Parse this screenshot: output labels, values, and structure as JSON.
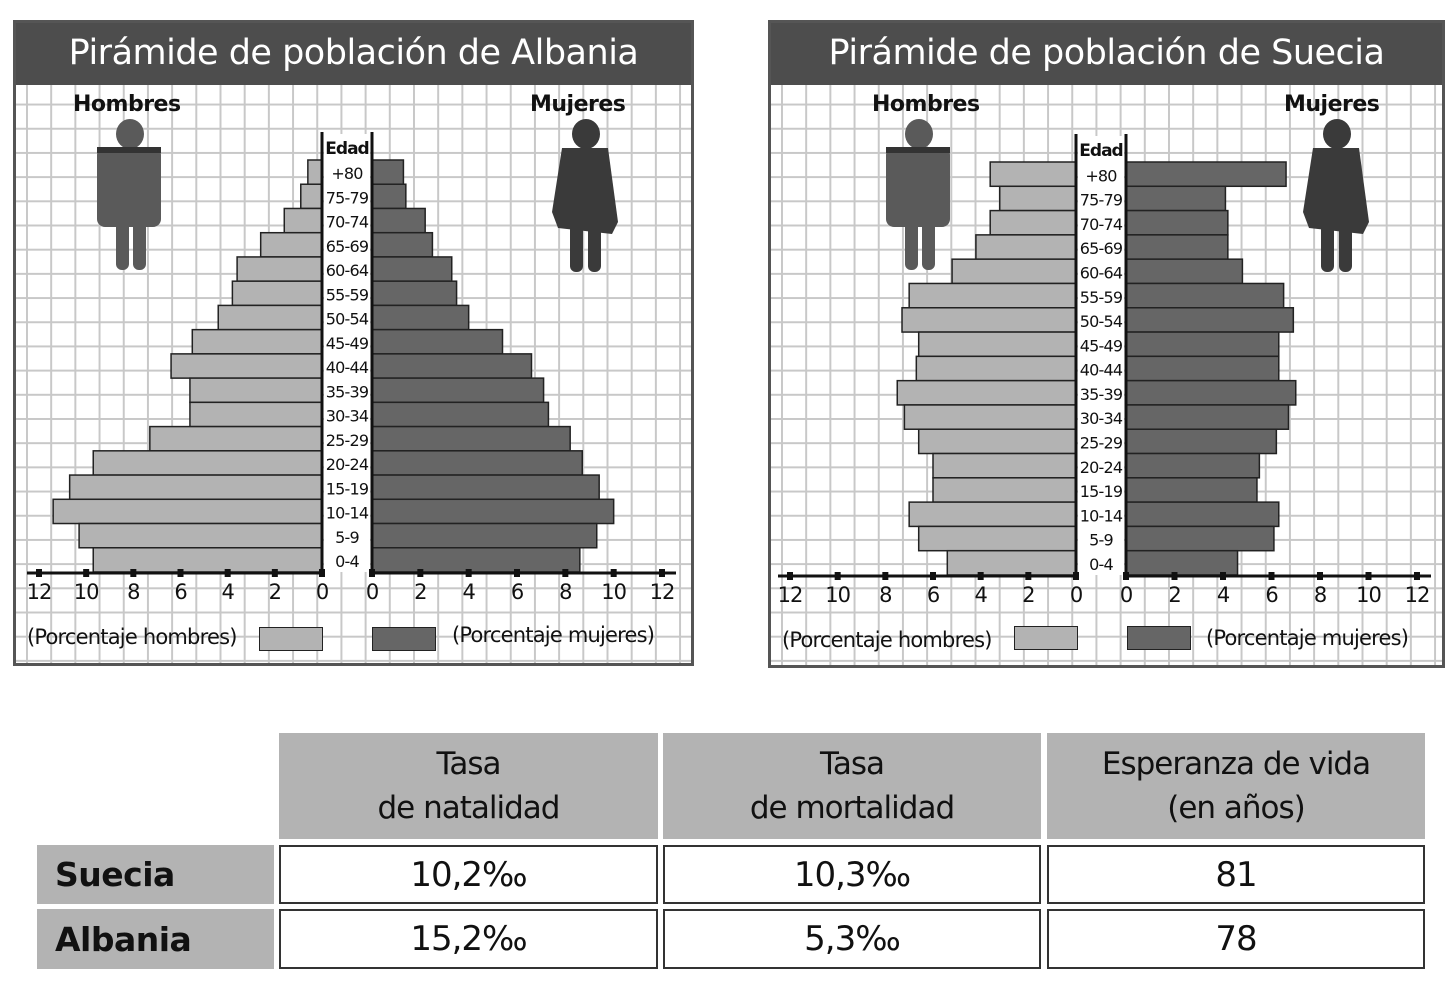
{
  "pyramids": [
    {
      "id": "albania",
      "title": "Pirámide de población de Albania",
      "male_label": "Hombres",
      "female_label": "Mujeres",
      "age_header": "Edad",
      "legend_male": "(Porcentaje hombres)",
      "legend_female": "(Porcentaje mujeres)"
    },
    {
      "id": "suecia",
      "title": "Pirámide de población de Suecia",
      "male_label": "Hombres",
      "female_label": "Mujeres",
      "age_header": "Edad",
      "legend_male": "(Porcentaje hombres)",
      "legend_female": "(Porcentaje mujeres)"
    }
  ],
  "colors": {
    "male": "#b3b3b3",
    "female": "#666666",
    "header": "#4d4d4d",
    "figure_male": "#5a5a5a",
    "figure_female": "#3a3a3a"
  },
  "chart_data": [
    {
      "type": "bar",
      "title": "Pirámide de población de Albania",
      "orientation": "horizontal-pyramid",
      "categories": [
        "+80",
        "75-79",
        "70-74",
        "65-69",
        "60-64",
        "55-59",
        "50-54",
        "45-49",
        "40-44",
        "35-39",
        "30-34",
        "25-29",
        "20-24",
        "15-19",
        "10-14",
        "5-9",
        "0-4"
      ],
      "series": [
        {
          "name": "Hombres",
          "values": [
            0.6,
            0.9,
            1.6,
            2.6,
            3.6,
            3.8,
            4.4,
            5.5,
            6.4,
            5.6,
            5.6,
            7.3,
            9.7,
            10.7,
            11.4,
            10.3,
            9.7
          ]
        },
        {
          "name": "Mujeres",
          "values": [
            1.3,
            1.4,
            2.2,
            2.5,
            3.3,
            3.5,
            4.0,
            5.4,
            6.6,
            7.1,
            7.3,
            8.2,
            8.7,
            9.4,
            10.0,
            9.3,
            8.6
          ]
        }
      ],
      "xlabel_left": "(Porcentaje hombres)",
      "xlabel_right": "(Porcentaje mujeres)",
      "ylabel": "Edad",
      "xlim": [
        0,
        12
      ],
      "xticks": [
        "0",
        "2",
        "4",
        "6",
        "8",
        "10",
        "12"
      ],
      "grid": true
    },
    {
      "type": "bar",
      "title": "Pirámide de población de Suecia",
      "orientation": "horizontal-pyramid",
      "categories": [
        "+80",
        "75-79",
        "70-74",
        "65-69",
        "60-64",
        "55-59",
        "50-54",
        "45-49",
        "40-44",
        "35-39",
        "30-34",
        "25-29",
        "20-24",
        "15-19",
        "10-14",
        "5-9",
        "0-4"
      ],
      "series": [
        {
          "name": "Hombres",
          "values": [
            3.6,
            3.2,
            3.6,
            4.2,
            5.2,
            7.0,
            7.3,
            6.6,
            6.7,
            7.5,
            7.2,
            6.6,
            6.0,
            6.0,
            7.0,
            6.6,
            5.4
          ]
        },
        {
          "name": "Mujeres",
          "values": [
            6.6,
            4.1,
            4.2,
            4.2,
            4.8,
            6.5,
            6.9,
            6.3,
            6.3,
            7.0,
            6.7,
            6.2,
            5.5,
            5.4,
            6.3,
            6.1,
            4.6
          ]
        }
      ],
      "xlabel_left": "(Porcentaje hombres)",
      "xlabel_right": "(Porcentaje mujeres)",
      "ylabel": "Edad",
      "xlim": [
        0,
        12
      ],
      "xticks": [
        "0",
        "2",
        "4",
        "6",
        "8",
        "10",
        "12"
      ],
      "grid": true
    }
  ],
  "table": {
    "headers": [
      {
        "line1": "Tasa",
        "line2": "de natalidad"
      },
      {
        "line1": "Tasa",
        "line2": "de mortalidad"
      },
      {
        "line1": "Esperanza de vida",
        "line2": "(en años)"
      }
    ],
    "rows": [
      {
        "country": "Suecia",
        "values": [
          "10,2‰",
          "10,3‰",
          "81"
        ]
      },
      {
        "country": "Albania",
        "values": [
          "15,2‰",
          "5,3‰",
          "78"
        ]
      }
    ]
  }
}
